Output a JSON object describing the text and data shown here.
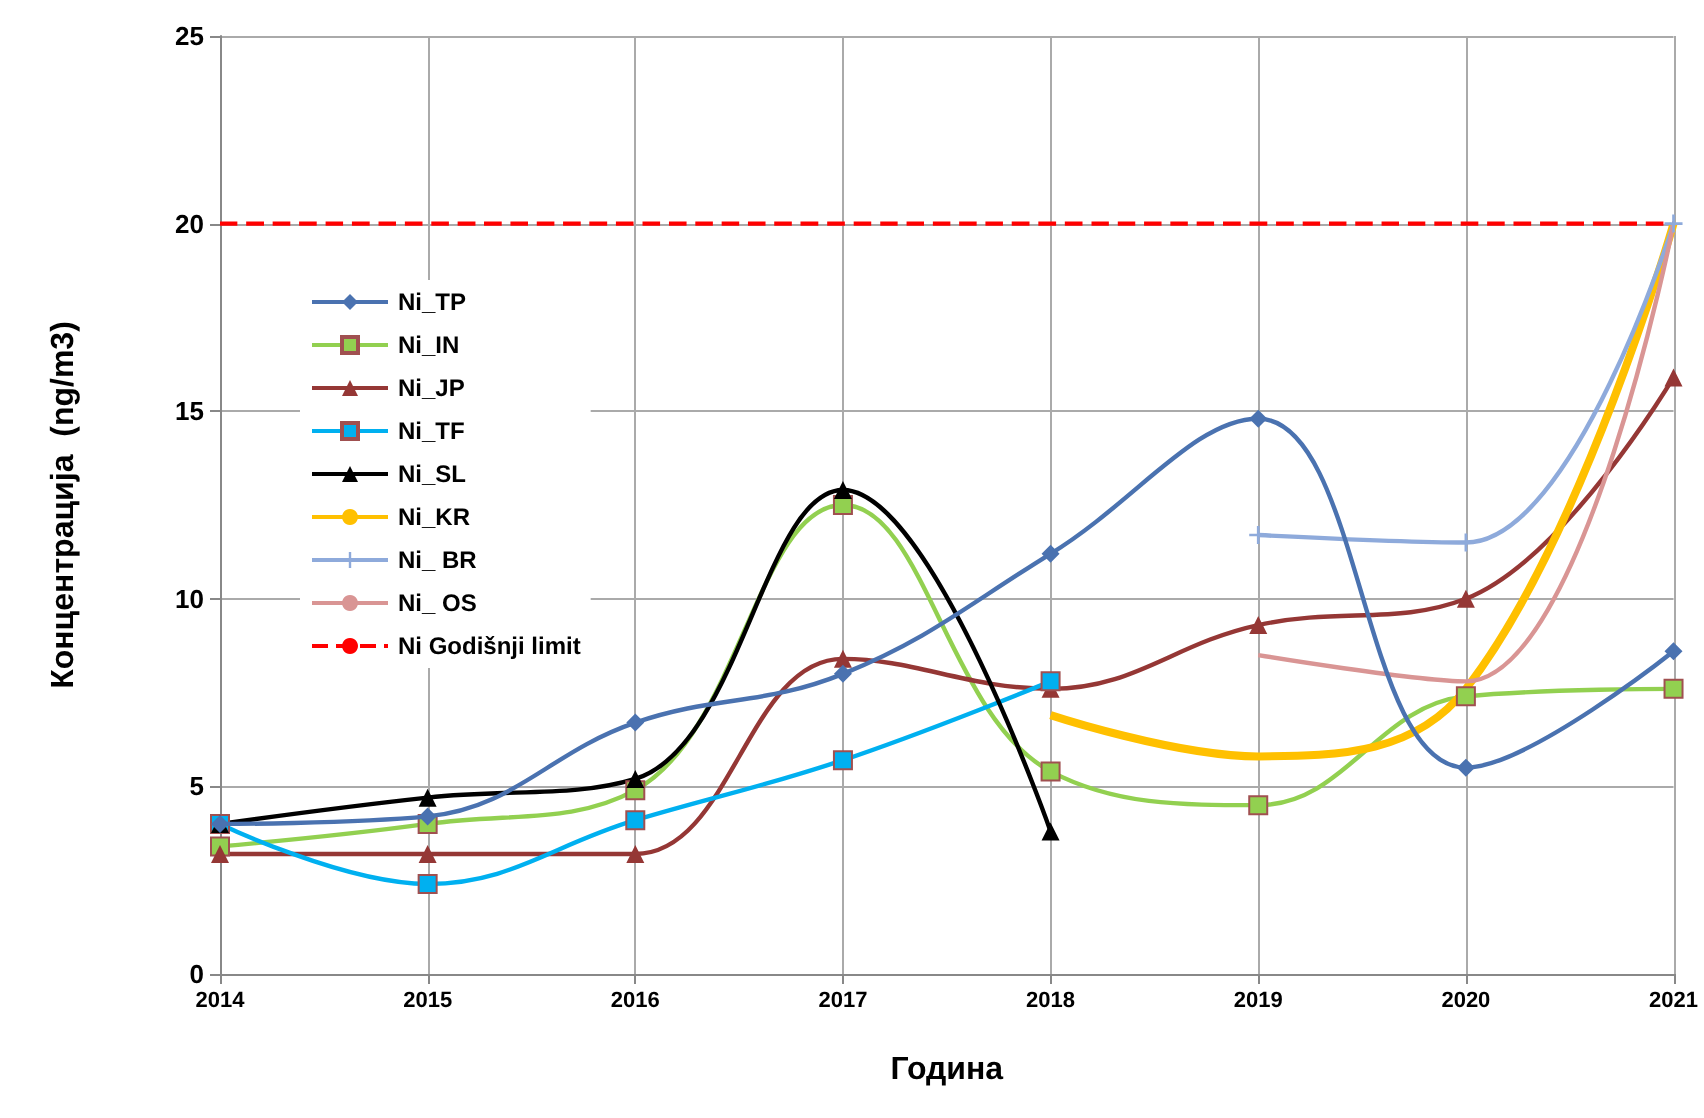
{
  "chart_data": {
    "type": "line",
    "xlabel": "Година",
    "ylabel": "Концентрација  (ng/m3)",
    "categories": [
      "2014",
      "2015",
      "2016",
      "2017",
      "2018",
      "2019",
      "2020",
      "2021"
    ],
    "series": [
      {
        "name": "Ni_TP",
        "color": "#4a72b0",
        "marker": "diamond",
        "values": [
          4.0,
          4.2,
          6.7,
          8.0,
          11.2,
          14.8,
          5.5,
          8.6
        ]
      },
      {
        "name": "Ni_IN",
        "color": "#92d050",
        "marker": "square",
        "values": [
          3.4,
          4.0,
          4.9,
          12.5,
          5.4,
          4.5,
          7.4,
          7.6
        ]
      },
      {
        "name": "Ni_JP",
        "color": "#953735",
        "marker": "triangle",
        "values": [
          3.2,
          3.2,
          3.2,
          8.4,
          7.6,
          9.3,
          10.0,
          15.9
        ]
      },
      {
        "name": "Ni_TF",
        "color": "#00b0f0",
        "marker": "square",
        "values": [
          4.0,
          2.4,
          4.1,
          5.7,
          7.8,
          null,
          null,
          null
        ]
      },
      {
        "name": "Ni_SL",
        "color": "#000000",
        "marker": "triangle",
        "values": [
          4.0,
          4.7,
          5.2,
          12.9,
          3.8,
          null,
          null,
          null
        ]
      },
      {
        "name": "Ni_KR",
        "color": "#ffc000",
        "marker": "none",
        "values": [
          null,
          null,
          null,
          null,
          6.9,
          5.8,
          7.6,
          20.0
        ]
      },
      {
        "name": "Ni_ BR",
        "color": "#8eaadb",
        "marker": "cross",
        "values": [
          null,
          null,
          null,
          null,
          null,
          11.7,
          11.5,
          20.0
        ]
      },
      {
        "name": "Ni_ OS",
        "color": "#d99594",
        "marker": "none",
        "values": [
          null,
          null,
          null,
          null,
          null,
          8.5,
          7.8,
          20.0
        ]
      },
      {
        "name": "Ni Godišnji limit",
        "color": "#ff0000",
        "marker": "none",
        "line_style": "dashed",
        "values": [
          20,
          20,
          20,
          20,
          20,
          20,
          20,
          20
        ]
      }
    ],
    "ylim": [
      0,
      25
    ],
    "yticks": [
      0,
      5,
      10,
      15,
      20,
      25
    ],
    "grid": true,
    "legend": "left"
  }
}
